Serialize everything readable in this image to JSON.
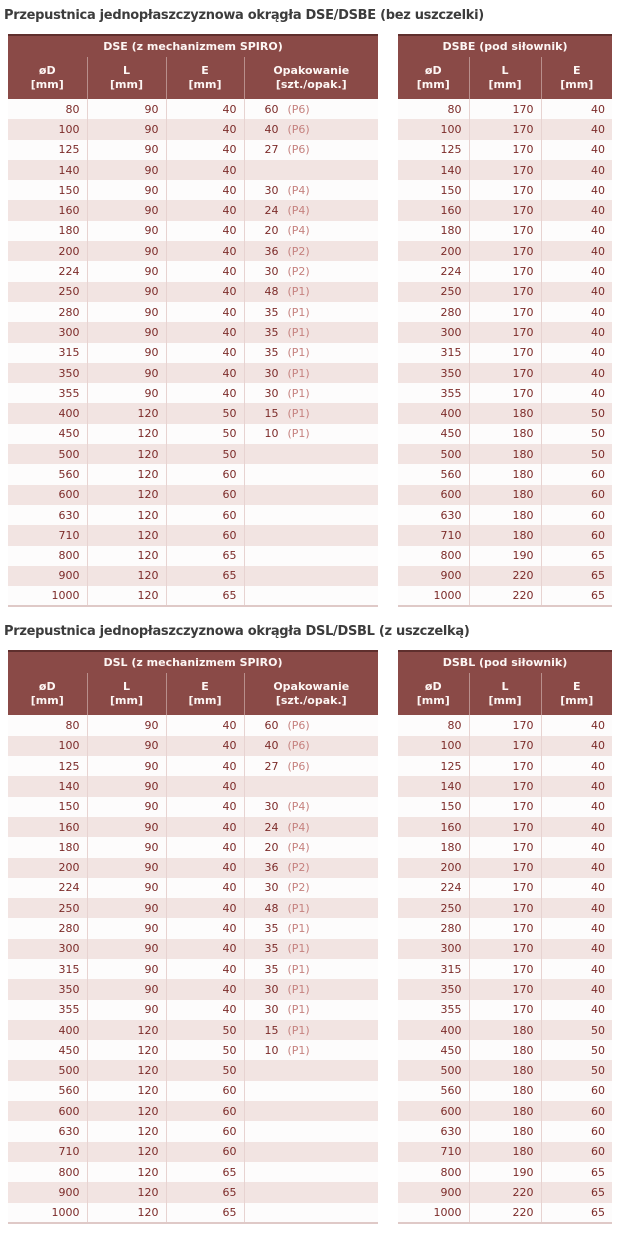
{
  "colors": {
    "header_bg": "#8a4a47",
    "header_text": "#fdf6f4",
    "header_top_border": "#5f2f2d",
    "header_separator": "#b98f8c",
    "row_even_bg": "#f2e4e2",
    "row_odd_bg": "#fdfcfc",
    "cell_separator": "#e7d3d1",
    "data_text": "#7c2b29",
    "packaging_text": "#c5817e",
    "title_text": "#3c3c3c",
    "table_bottom_border": "#dfc9c7"
  },
  "columns": {
    "diameter": "øD",
    "length": "L",
    "e": "E",
    "packaging": "Opakowanie",
    "mm_unit": "[mm]",
    "packaging_unit": "[szt./opak.]"
  },
  "sections": [
    {
      "title": "Przepustnica jednopłaszczyznowa okrągła DSE/DSBE (bez uszczelki)",
      "left": {
        "name": "DSE (z mechanizmem SPIRO)",
        "rows": [
          [
            "80",
            "90",
            "40",
            "60",
            "(P6)"
          ],
          [
            "100",
            "90",
            "40",
            "40",
            "(P6)"
          ],
          [
            "125",
            "90",
            "40",
            "27",
            "(P6)"
          ],
          [
            "140",
            "90",
            "40",
            "",
            ""
          ],
          [
            "150",
            "90",
            "40",
            "30",
            "(P4)"
          ],
          [
            "160",
            "90",
            "40",
            "24",
            "(P4)"
          ],
          [
            "180",
            "90",
            "40",
            "20",
            "(P4)"
          ],
          [
            "200",
            "90",
            "40",
            "36",
            "(P2)"
          ],
          [
            "224",
            "90",
            "40",
            "30",
            "(P2)"
          ],
          [
            "250",
            "90",
            "40",
            "48",
            "(P1)"
          ],
          [
            "280",
            "90",
            "40",
            "35",
            "(P1)"
          ],
          [
            "300",
            "90",
            "40",
            "35",
            "(P1)"
          ],
          [
            "315",
            "90",
            "40",
            "35",
            "(P1)"
          ],
          [
            "350",
            "90",
            "40",
            "30",
            "(P1)"
          ],
          [
            "355",
            "90",
            "40",
            "30",
            "(P1)"
          ],
          [
            "400",
            "120",
            "50",
            "15",
            "(P1)"
          ],
          [
            "450",
            "120",
            "50",
            "10",
            "(P1)"
          ],
          [
            "500",
            "120",
            "50",
            "",
            ""
          ],
          [
            "560",
            "120",
            "60",
            "",
            ""
          ],
          [
            "600",
            "120",
            "60",
            "",
            ""
          ],
          [
            "630",
            "120",
            "60",
            "",
            ""
          ],
          [
            "710",
            "120",
            "60",
            "",
            ""
          ],
          [
            "800",
            "120",
            "65",
            "",
            ""
          ],
          [
            "900",
            "120",
            "65",
            "",
            ""
          ],
          [
            "1000",
            "120",
            "65",
            "",
            ""
          ]
        ]
      },
      "right": {
        "name": "DSBE (pod siłownik)",
        "rows": [
          [
            "80",
            "170",
            "40"
          ],
          [
            "100",
            "170",
            "40"
          ],
          [
            "125",
            "170",
            "40"
          ],
          [
            "140",
            "170",
            "40"
          ],
          [
            "150",
            "170",
            "40"
          ],
          [
            "160",
            "170",
            "40"
          ],
          [
            "180",
            "170",
            "40"
          ],
          [
            "200",
            "170",
            "40"
          ],
          [
            "224",
            "170",
            "40"
          ],
          [
            "250",
            "170",
            "40"
          ],
          [
            "280",
            "170",
            "40"
          ],
          [
            "300",
            "170",
            "40"
          ],
          [
            "315",
            "170",
            "40"
          ],
          [
            "350",
            "170",
            "40"
          ],
          [
            "355",
            "170",
            "40"
          ],
          [
            "400",
            "180",
            "50"
          ],
          [
            "450",
            "180",
            "50"
          ],
          [
            "500",
            "180",
            "50"
          ],
          [
            "560",
            "180",
            "60"
          ],
          [
            "600",
            "180",
            "60"
          ],
          [
            "630",
            "180",
            "60"
          ],
          [
            "710",
            "180",
            "60"
          ],
          [
            "800",
            "190",
            "65"
          ],
          [
            "900",
            "220",
            "65"
          ],
          [
            "1000",
            "220",
            "65"
          ]
        ]
      }
    },
    {
      "title": "Przepustnica jednopłaszczyznowa okrągła DSL/DSBL (z uszczelką)",
      "left": {
        "name": "DSL (z mechanizmem SPIRO)",
        "rows": [
          [
            "80",
            "90",
            "40",
            "60",
            "(P6)"
          ],
          [
            "100",
            "90",
            "40",
            "40",
            "(P6)"
          ],
          [
            "125",
            "90",
            "40",
            "27",
            "(P6)"
          ],
          [
            "140",
            "90",
            "40",
            "",
            ""
          ],
          [
            "150",
            "90",
            "40",
            "30",
            "(P4)"
          ],
          [
            "160",
            "90",
            "40",
            "24",
            "(P4)"
          ],
          [
            "180",
            "90",
            "40",
            "20",
            "(P4)"
          ],
          [
            "200",
            "90",
            "40",
            "36",
            "(P2)"
          ],
          [
            "224",
            "90",
            "40",
            "30",
            "(P2)"
          ],
          [
            "250",
            "90",
            "40",
            "48",
            "(P1)"
          ],
          [
            "280",
            "90",
            "40",
            "35",
            "(P1)"
          ],
          [
            "300",
            "90",
            "40",
            "35",
            "(P1)"
          ],
          [
            "315",
            "90",
            "40",
            "35",
            "(P1)"
          ],
          [
            "350",
            "90",
            "40",
            "30",
            "(P1)"
          ],
          [
            "355",
            "90",
            "40",
            "30",
            "(P1)"
          ],
          [
            "400",
            "120",
            "50",
            "15",
            "(P1)"
          ],
          [
            "450",
            "120",
            "50",
            "10",
            "(P1)"
          ],
          [
            "500",
            "120",
            "50",
            "",
            ""
          ],
          [
            "560",
            "120",
            "60",
            "",
            ""
          ],
          [
            "600",
            "120",
            "60",
            "",
            ""
          ],
          [
            "630",
            "120",
            "60",
            "",
            ""
          ],
          [
            "710",
            "120",
            "60",
            "",
            ""
          ],
          [
            "800",
            "120",
            "65",
            "",
            ""
          ],
          [
            "900",
            "120",
            "65",
            "",
            ""
          ],
          [
            "1000",
            "120",
            "65",
            "",
            ""
          ]
        ]
      },
      "right": {
        "name": "DSBL (pod siłownik)",
        "rows": [
          [
            "80",
            "170",
            "40"
          ],
          [
            "100",
            "170",
            "40"
          ],
          [
            "125",
            "170",
            "40"
          ],
          [
            "140",
            "170",
            "40"
          ],
          [
            "150",
            "170",
            "40"
          ],
          [
            "160",
            "170",
            "40"
          ],
          [
            "180",
            "170",
            "40"
          ],
          [
            "200",
            "170",
            "40"
          ],
          [
            "224",
            "170",
            "40"
          ],
          [
            "250",
            "170",
            "40"
          ],
          [
            "280",
            "170",
            "40"
          ],
          [
            "300",
            "170",
            "40"
          ],
          [
            "315",
            "170",
            "40"
          ],
          [
            "350",
            "170",
            "40"
          ],
          [
            "355",
            "170",
            "40"
          ],
          [
            "400",
            "180",
            "50"
          ],
          [
            "450",
            "180",
            "50"
          ],
          [
            "500",
            "180",
            "50"
          ],
          [
            "560",
            "180",
            "60"
          ],
          [
            "600",
            "180",
            "60"
          ],
          [
            "630",
            "180",
            "60"
          ],
          [
            "710",
            "180",
            "60"
          ],
          [
            "800",
            "190",
            "65"
          ],
          [
            "900",
            "220",
            "65"
          ],
          [
            "1000",
            "220",
            "65"
          ]
        ]
      }
    }
  ]
}
